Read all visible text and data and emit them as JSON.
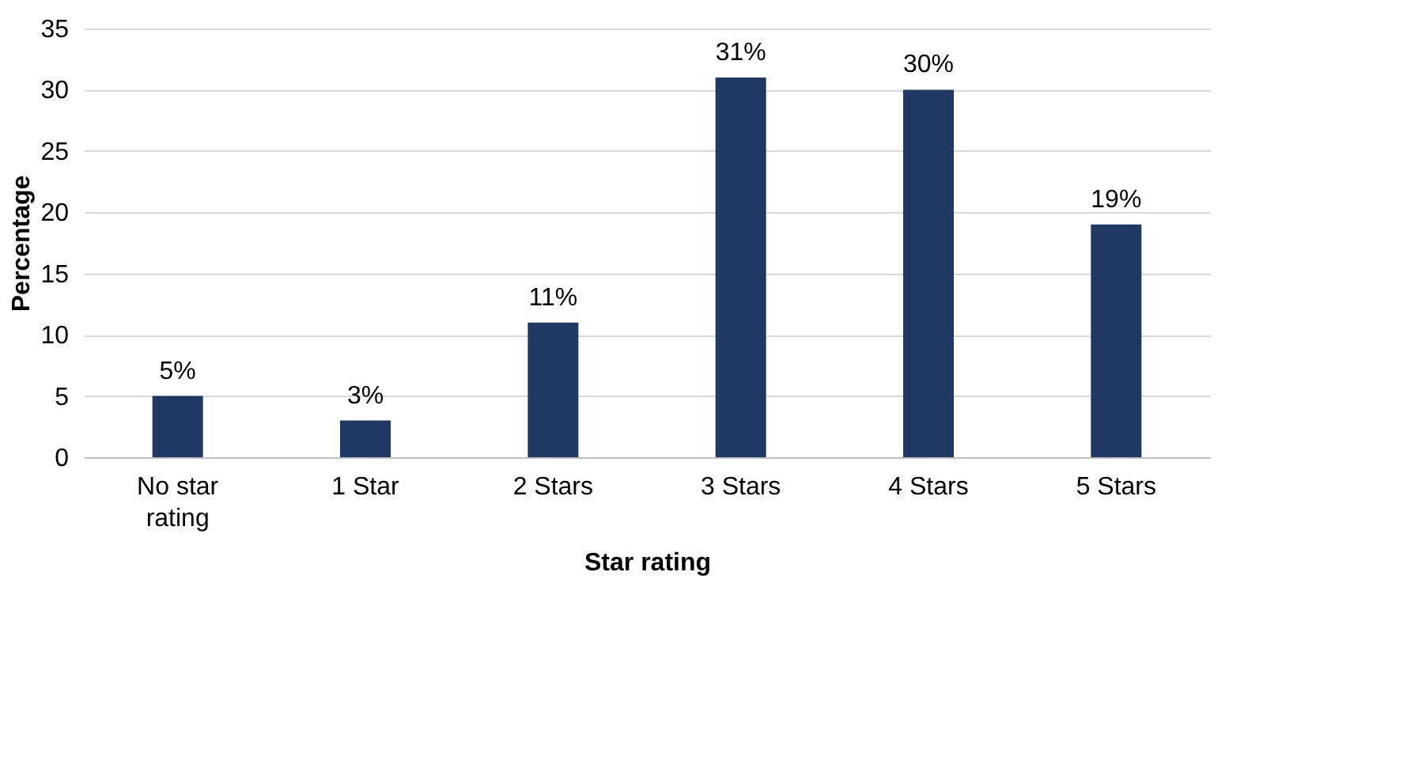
{
  "chart_data": {
    "type": "bar",
    "xlabel": "Star rating",
    "ylabel": "Percentage",
    "categories": [
      "No star rating",
      "1 Star",
      "2 Stars",
      "3 Stars",
      "4 Stars",
      "5 Stars"
    ],
    "values": [
      5,
      3,
      11,
      31,
      30,
      19
    ],
    "value_labels": [
      "5%",
      "3%",
      "11%",
      "31%",
      "30%",
      "19%"
    ],
    "color": "#203864",
    "ylim": [
      0,
      35
    ],
    "yticks": [
      0,
      5,
      10,
      15,
      20,
      25,
      30,
      35
    ],
    "grid": "y"
  }
}
